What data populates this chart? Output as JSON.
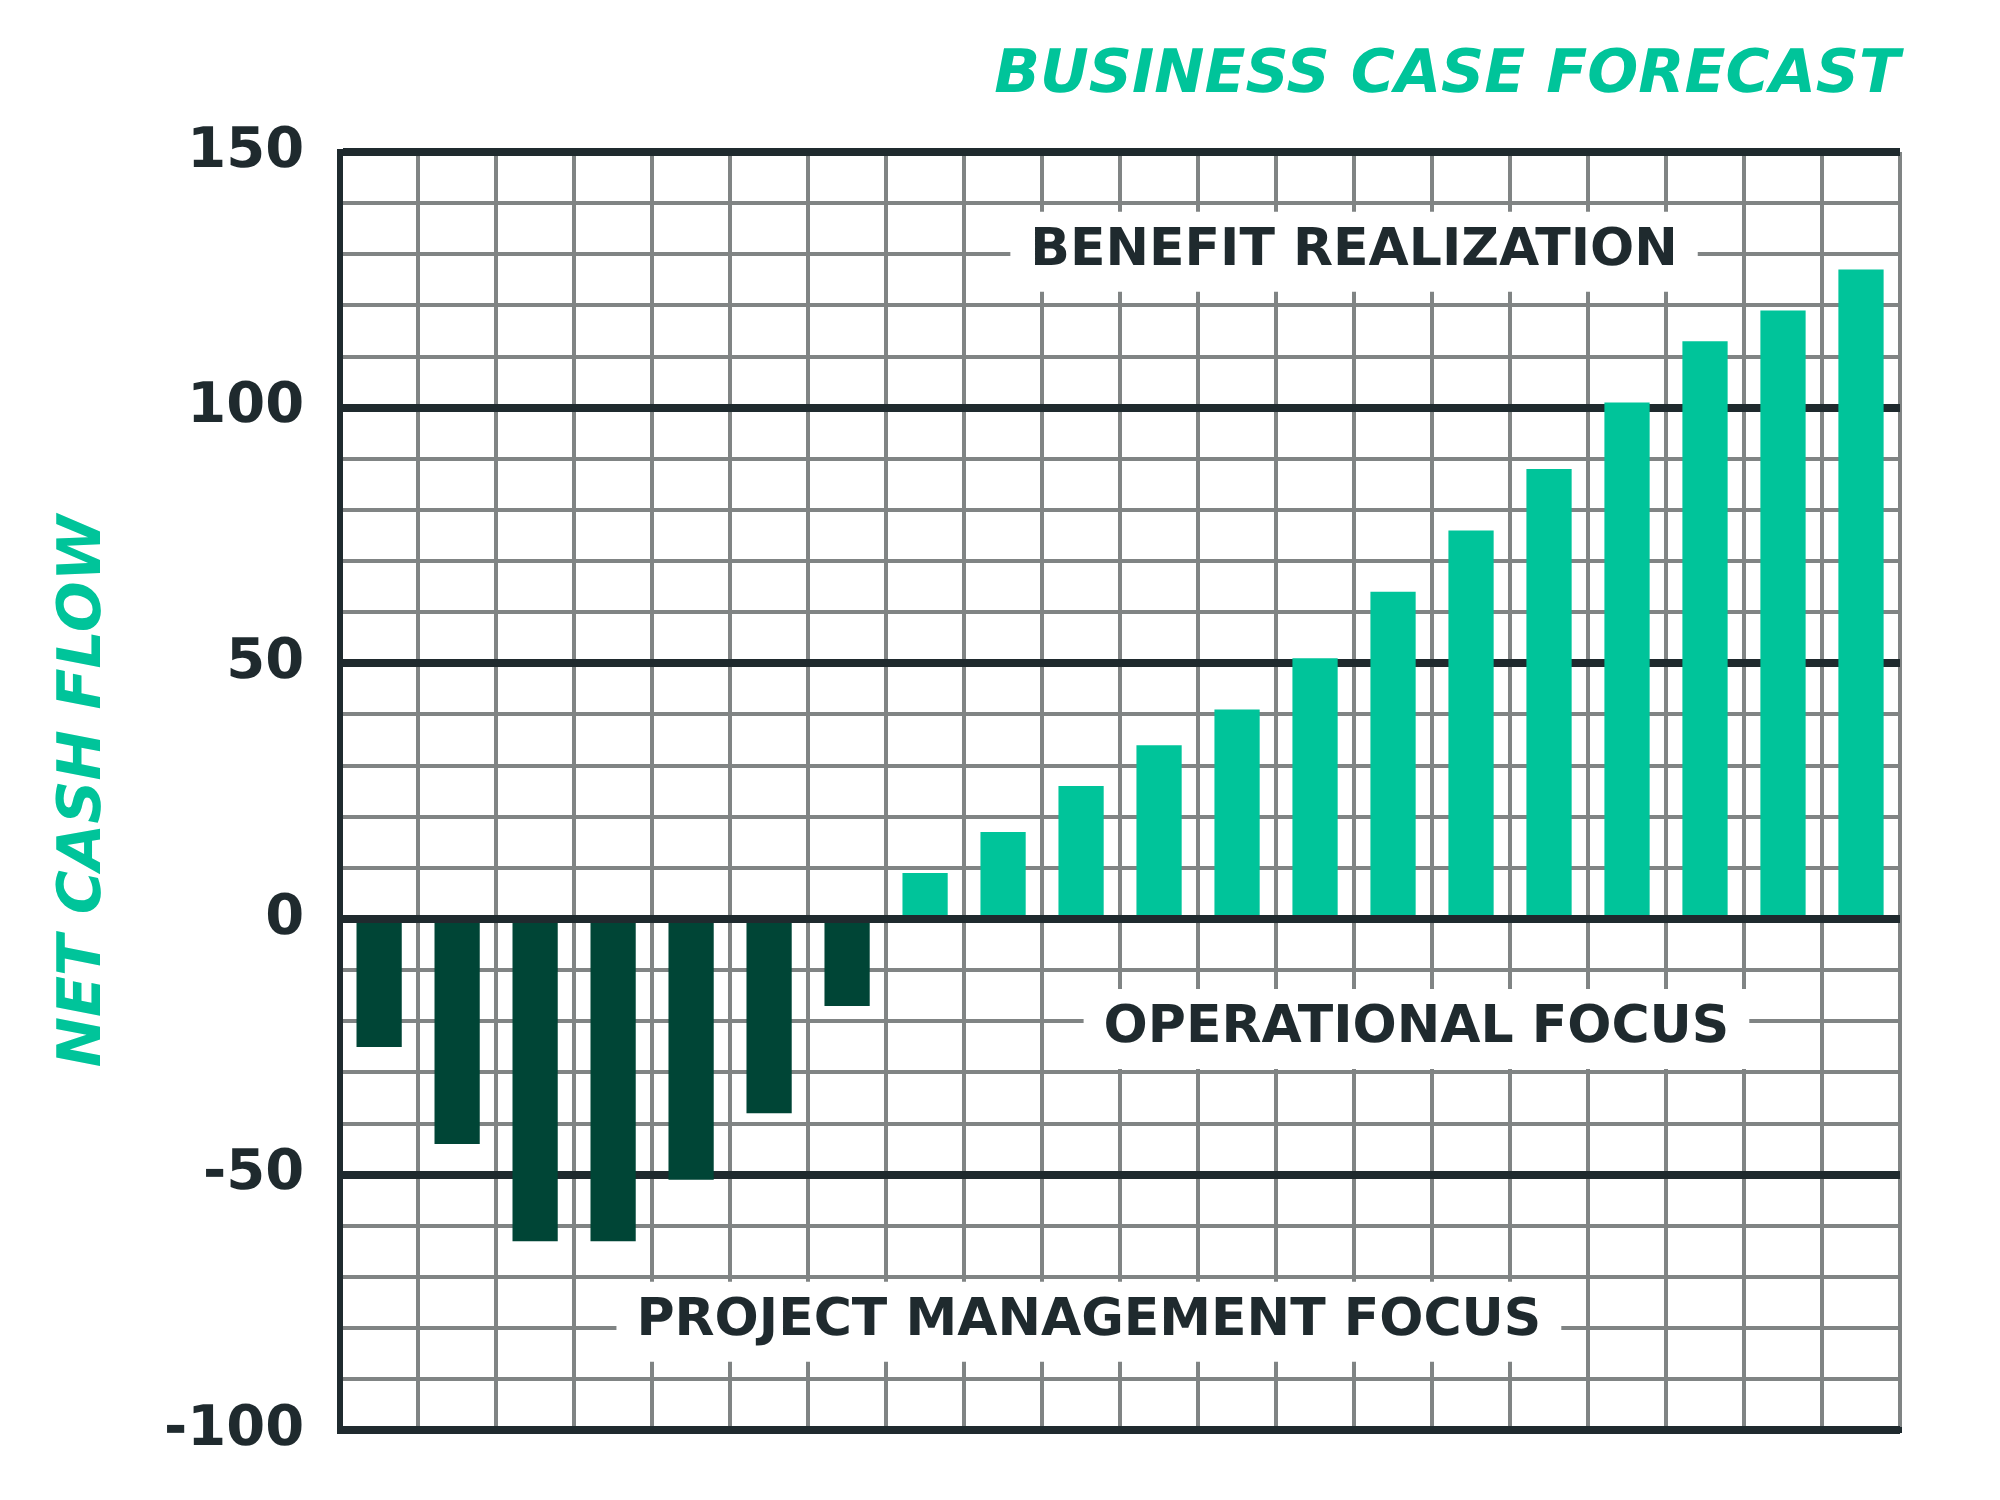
{
  "chart_data": {
    "type": "bar",
    "title": "BUSINESS CASE FORECAST",
    "ylabel": "NET CASH FLOW",
    "categories": [
      null,
      null,
      null,
      null,
      null,
      null,
      null,
      null,
      null,
      null,
      null,
      null,
      null,
      null,
      null,
      null,
      null,
      null,
      null,
      null
    ],
    "values": [
      -25,
      -44,
      -63,
      -63,
      -51,
      -38,
      -17,
      9,
      17,
      26,
      34,
      41,
      51,
      64,
      76,
      88,
      101,
      113,
      119,
      127
    ],
    "colors": [
      "#004536",
      "#004536",
      "#004536",
      "#004536",
      "#004536",
      "#004536",
      "#004536",
      "#00c49a",
      "#00c49a",
      "#00c49a",
      "#00c49a",
      "#00c49a",
      "#00c49a",
      "#00c49a",
      "#00c49a",
      "#00c49a",
      "#00c49a",
      "#00c49a",
      "#00c49a",
      "#00c49a"
    ],
    "ylim": [
      -100,
      150
    ],
    "yticks": [
      -100,
      {
        "value": -90,
        "label": null
      },
      {
        "value": -80,
        "label": null
      },
      {
        "value": -70,
        "label": null
      },
      {
        "value": -60,
        "label": null
      },
      -50,
      {
        "value": -40,
        "label": null
      },
      {
        "value": -30,
        "label": null
      },
      {
        "value": -20,
        "label": null
      },
      {
        "value": -10,
        "label": null
      },
      0,
      {
        "value": 10,
        "label": null
      },
      {
        "value": 20,
        "label": null
      },
      {
        "value": 30,
        "label": null
      },
      {
        "value": 40,
        "label": null
      },
      50,
      {
        "value": 60,
        "label": null
      },
      {
        "value": 70,
        "label": null
      },
      {
        "value": 80,
        "label": null
      },
      {
        "value": 90,
        "label": null
      },
      100,
      {
        "value": 110,
        "label": null
      },
      {
        "value": 120,
        "label": null
      },
      {
        "value": 130,
        "label": null
      },
      {
        "value": 140,
        "label": null
      },
      150
    ],
    "annotations": [
      "BENEFIT REALIZATION",
      "OPERATIONAL FOCUS",
      "PROJECT MANAGEMENT FOCUS"
    ],
    "grid": true,
    "tick_labels": "y",
    "legend": false
  }
}
